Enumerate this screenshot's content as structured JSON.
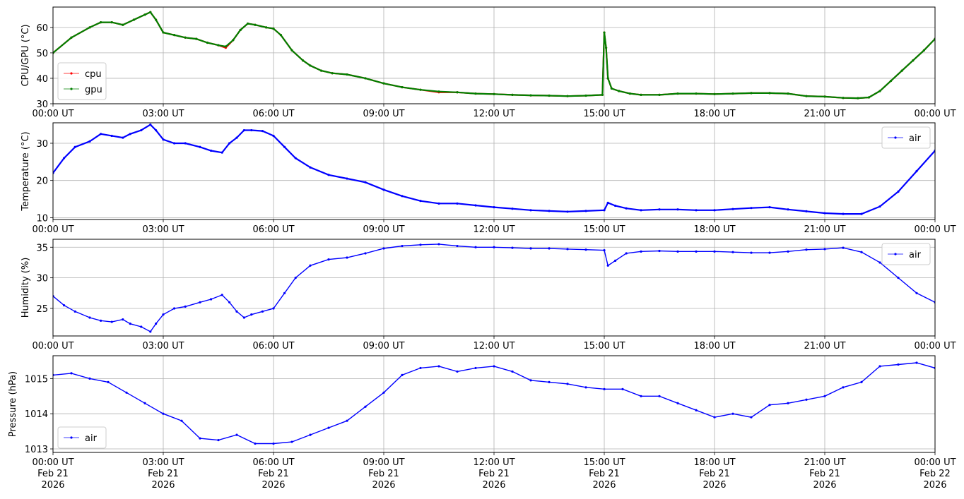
{
  "chart_data": [
    {
      "type": "line",
      "ylabel": "CPU/GPU (°C)",
      "ylim": [
        30,
        68
      ],
      "yticks": [
        30,
        40,
        50,
        60
      ],
      "xlim": [
        0,
        24
      ],
      "xticks": [
        "00:00 UT",
        "03:00 UT",
        "06:00 UT",
        "09:00 UT",
        "12:00 UT",
        "15:00 UT",
        "18:00 UT",
        "21:00 UT",
        "00:00 UT"
      ],
      "grid": true,
      "legend": "lower-left",
      "series": [
        {
          "name": "cpu",
          "color": "#ff0000",
          "x": [
            0,
            0.5,
            1.0,
            1.3,
            1.6,
            1.9,
            2.2,
            2.5,
            2.65,
            2.8,
            3.0,
            3.3,
            3.6,
            3.9,
            4.2,
            4.5,
            4.7,
            4.9,
            5.1,
            5.3,
            5.5,
            5.8,
            6.0,
            6.2,
            6.5,
            6.8,
            7.0,
            7.3,
            7.6,
            8.0,
            8.5,
            9.0,
            9.5,
            10.0,
            10.5,
            11.0,
            11.5,
            12.0,
            12.5,
            13.0,
            13.5,
            14.0,
            14.5,
            14.95,
            15.0,
            15.05,
            15.1,
            15.2,
            15.4,
            15.7,
            16.0,
            16.5,
            17.0,
            17.5,
            18.0,
            18.5,
            19.0,
            19.5,
            20.0,
            20.5,
            21.0,
            21.5,
            21.9,
            22.2,
            22.5,
            22.8,
            23.1,
            23.4,
            23.7,
            24.0
          ],
          "y": [
            50,
            56,
            60,
            62,
            62,
            61,
            63,
            65,
            66,
            63,
            58,
            57,
            56,
            55.5,
            54,
            53,
            52,
            55,
            59,
            61.5,
            61,
            60,
            59.5,
            57,
            51,
            47,
            45,
            43,
            42,
            41.5,
            40,
            38,
            36.5,
            35.5,
            34.5,
            34.5,
            34,
            33.8,
            33.5,
            33.3,
            33.2,
            33,
            33.2,
            33.5,
            58,
            52,
            40,
            36,
            35,
            34,
            33.5,
            33.5,
            34,
            34,
            33.8,
            34,
            34.2,
            34.2,
            34,
            33,
            32.8,
            32.3,
            32.2,
            32.5,
            35,
            39,
            43,
            47,
            51,
            55.5
          ]
        },
        {
          "name": "gpu",
          "color": "#008000",
          "x": [
            0,
            0.5,
            1.0,
            1.3,
            1.6,
            1.9,
            2.2,
            2.5,
            2.65,
            2.8,
            3.0,
            3.3,
            3.6,
            3.9,
            4.2,
            4.5,
            4.7,
            4.9,
            5.1,
            5.3,
            5.5,
            5.8,
            6.0,
            6.2,
            6.5,
            6.8,
            7.0,
            7.3,
            7.6,
            8.0,
            8.5,
            9.0,
            9.5,
            10.0,
            10.5,
            11.0,
            11.5,
            12.0,
            12.5,
            13.0,
            13.5,
            14.0,
            14.5,
            14.95,
            15.0,
            15.05,
            15.1,
            15.2,
            15.4,
            15.7,
            16.0,
            16.5,
            17.0,
            17.5,
            18.0,
            18.5,
            19.0,
            19.5,
            20.0,
            20.5,
            21.0,
            21.5,
            21.9,
            22.2,
            22.5,
            22.8,
            23.1,
            23.4,
            23.7,
            24.0
          ],
          "y": [
            50,
            56,
            60,
            62,
            62,
            61,
            63,
            65,
            66,
            63,
            58,
            57,
            56,
            55.5,
            54,
            53,
            52.5,
            55,
            59,
            61.5,
            61,
            60,
            59.5,
            57,
            51,
            47,
            45,
            43,
            42,
            41.5,
            40,
            38,
            36.5,
            35.5,
            34.8,
            34.5,
            34,
            33.8,
            33.5,
            33.3,
            33.2,
            33,
            33.2,
            33.5,
            58,
            52,
            40,
            36,
            35,
            34,
            33.5,
            33.5,
            34,
            34,
            33.8,
            34,
            34.2,
            34.2,
            34,
            33,
            32.8,
            32.3,
            32.2,
            32.5,
            35,
            39,
            43,
            47,
            51,
            55.5
          ]
        }
      ]
    },
    {
      "type": "line",
      "ylabel": "Temperature (°C)",
      "ylim": [
        9.5,
        35.5
      ],
      "yticks": [
        10,
        20,
        30
      ],
      "xlim": [
        0,
        24
      ],
      "xticks": [
        "00:00 UT",
        "03:00 UT",
        "06:00 UT",
        "09:00 UT",
        "12:00 UT",
        "15:00 UT",
        "18:00 UT",
        "21:00 UT",
        "00:00 UT"
      ],
      "grid": true,
      "legend": "upper-right",
      "series": [
        {
          "name": "air",
          "color": "#0000ff",
          "x": [
            0,
            0.3,
            0.6,
            1.0,
            1.3,
            1.6,
            1.9,
            2.1,
            2.4,
            2.65,
            2.8,
            3.0,
            3.3,
            3.6,
            4.0,
            4.3,
            4.6,
            4.8,
            5.0,
            5.2,
            5.4,
            5.7,
            6.0,
            6.3,
            6.6,
            7.0,
            7.5,
            8.0,
            8.5,
            9.0,
            9.5,
            10.0,
            10.5,
            11.0,
            11.5,
            12.0,
            12.5,
            13.0,
            13.5,
            14.0,
            14.5,
            15.0,
            15.1,
            15.3,
            15.6,
            16.0,
            16.5,
            17.0,
            17.5,
            18.0,
            18.5,
            19.0,
            19.5,
            20.0,
            20.5,
            21.0,
            21.5,
            22.0,
            22.5,
            23.0,
            23.5,
            24.0
          ],
          "y": [
            22,
            26,
            29,
            30.5,
            32.5,
            32,
            31.5,
            32.5,
            33.5,
            35,
            33.5,
            31,
            30,
            30,
            29,
            28,
            27.5,
            30,
            31.5,
            33.5,
            33.5,
            33.3,
            32,
            29,
            26,
            23.5,
            21.5,
            20.5,
            19.5,
            17.5,
            15.8,
            14.5,
            13.8,
            13.8,
            13.3,
            12.8,
            12.4,
            12,
            11.8,
            11.6,
            11.8,
            12,
            14,
            13.2,
            12.5,
            12,
            12.2,
            12.2,
            12,
            12,
            12.3,
            12.6,
            12.8,
            12.2,
            11.7,
            11.2,
            11,
            11,
            13,
            17,
            22.5,
            28
          ]
        }
      ]
    },
    {
      "type": "scatter",
      "ylabel": "Humidity (%)",
      "ylim": [
        20.5,
        36.3
      ],
      "yticks": [
        25,
        30,
        35
      ],
      "xlim": [
        0,
        24
      ],
      "xticks": [
        "00:00 UT",
        "03:00 UT",
        "06:00 UT",
        "09:00 UT",
        "12:00 UT",
        "15:00 UT",
        "18:00 UT",
        "21:00 UT",
        "00:00 UT"
      ],
      "grid": true,
      "legend": "upper-right",
      "series": [
        {
          "name": "air",
          "color": "#0000ff",
          "x": [
            0,
            0.3,
            0.6,
            1.0,
            1.3,
            1.6,
            1.9,
            2.1,
            2.4,
            2.65,
            2.8,
            3.0,
            3.3,
            3.6,
            4.0,
            4.3,
            4.6,
            4.8,
            5.0,
            5.2,
            5.4,
            5.7,
            6.0,
            6.3,
            6.6,
            7.0,
            7.5,
            8.0,
            8.5,
            9.0,
            9.5,
            10.0,
            10.5,
            11.0,
            11.5,
            12.0,
            12.5,
            13.0,
            13.5,
            14.0,
            14.5,
            15.0,
            15.1,
            15.3,
            15.6,
            16.0,
            16.5,
            17.0,
            17.5,
            18.0,
            18.5,
            19.0,
            19.5,
            20.0,
            20.5,
            21.0,
            21.5,
            22.0,
            22.5,
            23.0,
            23.5,
            24.0
          ],
          "y": [
            27,
            25.5,
            24.5,
            23.5,
            23,
            22.8,
            23.2,
            22.5,
            22,
            21.2,
            22.5,
            24,
            25,
            25.3,
            26,
            26.5,
            27.2,
            26,
            24.5,
            23.5,
            24,
            24.5,
            25,
            27.5,
            30,
            32,
            33,
            33.3,
            34,
            34.8,
            35.2,
            35.4,
            35.5,
            35.2,
            35,
            35,
            34.9,
            34.8,
            34.8,
            34.7,
            34.6,
            34.5,
            32,
            32.8,
            34,
            34.3,
            34.4,
            34.3,
            34.3,
            34.3,
            34.2,
            34.1,
            34.1,
            34.3,
            34.6,
            34.7,
            34.9,
            34.2,
            32.5,
            30,
            27.5,
            26
          ]
        }
      ]
    },
    {
      "type": "scatter",
      "ylabel": "Pressure (hPa)",
      "ylim": [
        1012.9,
        1015.65
      ],
      "yticks": [
        1013,
        1014,
        1015
      ],
      "xlim": [
        0,
        24
      ],
      "xticks": [
        "00:00 UT\nFeb 21\n2026",
        "03:00 UT\nFeb 21\n2026",
        "06:00 UT\nFeb 21\n2026",
        "09:00 UT\nFeb 21\n2026",
        "12:00 UT\nFeb 21\n2026",
        "15:00 UT\nFeb 21\n2026",
        "18:00 UT\nFeb 21\n2026",
        "21:00 UT\nFeb 21\n2026",
        "00:00 UT\nFeb 22\n2026"
      ],
      "grid": true,
      "legend": "lower-left",
      "series": [
        {
          "name": "air",
          "color": "#0000ff",
          "x": [
            0,
            0.5,
            1.0,
            1.5,
            2.0,
            2.5,
            3.0,
            3.5,
            4.0,
            4.5,
            5.0,
            5.5,
            6.0,
            6.5,
            7.0,
            7.5,
            8.0,
            8.5,
            9.0,
            9.5,
            10.0,
            10.5,
            11.0,
            11.5,
            12.0,
            12.5,
            13.0,
            13.5,
            14.0,
            14.5,
            15.0,
            15.5,
            16.0,
            16.5,
            17.0,
            17.5,
            18.0,
            18.5,
            19.0,
            19.5,
            20.0,
            20.5,
            21.0,
            21.5,
            22.0,
            22.5,
            23.0,
            23.5,
            24.0
          ],
          "y": [
            1015.1,
            1015.15,
            1015.0,
            1014.9,
            1014.6,
            1014.3,
            1014.0,
            1013.8,
            1013.3,
            1013.25,
            1013.4,
            1013.15,
            1013.15,
            1013.2,
            1013.4,
            1013.6,
            1013.8,
            1014.2,
            1014.6,
            1015.1,
            1015.3,
            1015.35,
            1015.2,
            1015.3,
            1015.35,
            1015.2,
            1014.95,
            1014.9,
            1014.85,
            1014.75,
            1014.7,
            1014.7,
            1014.5,
            1014.5,
            1014.3,
            1014.1,
            1013.9,
            1014.0,
            1013.9,
            1014.25,
            1014.3,
            1014.4,
            1014.5,
            1014.75,
            1014.9,
            1015.35,
            1015.4,
            1015.45,
            1015.3
          ]
        }
      ]
    }
  ]
}
